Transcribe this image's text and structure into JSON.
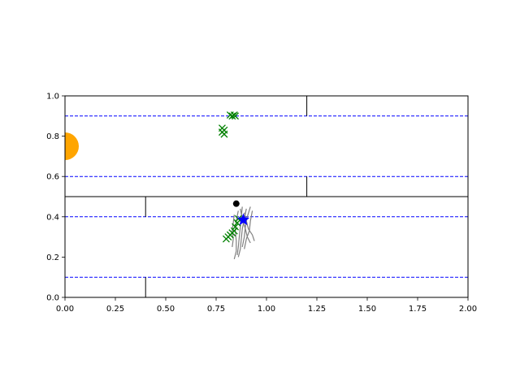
{
  "chart_data": {
    "type": "scatter",
    "xlim": [
      0,
      2
    ],
    "ylim": [
      0,
      1
    ],
    "xticks": [
      0,
      0.25,
      0.5,
      0.75,
      1.0,
      1.25,
      1.5,
      1.75,
      2.0
    ],
    "yticks": [
      0,
      0.2,
      0.4,
      0.6,
      0.8,
      1.0
    ],
    "xtick_labels": [
      "0.00",
      "0.25",
      "0.50",
      "0.75",
      "1.00",
      "1.25",
      "1.50",
      "1.75",
      "2.00"
    ],
    "ytick_labels": [
      "0.0",
      "0.2",
      "0.4",
      "0.6",
      "0.8",
      "1.0"
    ],
    "grid": false,
    "lane_lines": {
      "y": [
        0.1,
        0.4,
        0.6,
        0.9
      ],
      "color": "#0000ff",
      "style": "dashed"
    },
    "walls": {
      "color": "#000000",
      "segments": [
        [
          [
            0,
            0.5
          ],
          [
            2,
            0.5
          ]
        ],
        [
          [
            0.4,
            0.4
          ],
          [
            0.4,
            0.5
          ]
        ],
        [
          [
            0.4,
            0.0
          ],
          [
            0.4,
            0.1
          ]
        ],
        [
          [
            1.2,
            0.9
          ],
          [
            1.2,
            1.0
          ]
        ],
        [
          [
            1.2,
            0.5
          ],
          [
            1.2,
            0.6
          ]
        ]
      ]
    },
    "goal_marker": {
      "x": 0.0,
      "y": 0.75,
      "color": "#ffa500",
      "shape": "circle"
    },
    "black_point": {
      "x": 0.85,
      "y": 0.465,
      "color": "#000000"
    },
    "blue_marker": {
      "x": 0.885,
      "y": 0.385,
      "color": "#0000ff",
      "shape": "star"
    },
    "green_x_markers": {
      "color": "#008000",
      "points": [
        [
          0.82,
          0.905
        ],
        [
          0.83,
          0.9
        ],
        [
          0.84,
          0.905
        ],
        [
          0.845,
          0.9
        ],
        [
          0.78,
          0.84
        ],
        [
          0.79,
          0.83
        ],
        [
          0.78,
          0.82
        ],
        [
          0.79,
          0.81
        ],
        [
          0.8,
          0.29
        ],
        [
          0.81,
          0.3
        ],
        [
          0.82,
          0.31
        ],
        [
          0.83,
          0.32
        ],
        [
          0.84,
          0.33
        ],
        [
          0.845,
          0.35
        ],
        [
          0.855,
          0.37
        ],
        [
          0.86,
          0.39
        ]
      ]
    },
    "gray_trajectories": {
      "color": "#808080",
      "paths": [
        [
          [
            0.88,
            0.45
          ],
          [
            0.875,
            0.4
          ],
          [
            0.87,
            0.35
          ],
          [
            0.865,
            0.3
          ],
          [
            0.86,
            0.25
          ],
          [
            0.855,
            0.21
          ]
        ],
        [
          [
            0.9,
            0.44
          ],
          [
            0.89,
            0.39
          ],
          [
            0.88,
            0.34
          ],
          [
            0.875,
            0.29
          ],
          [
            0.87,
            0.24
          ],
          [
            0.86,
            0.2
          ]
        ],
        [
          [
            0.92,
            0.45
          ],
          [
            0.905,
            0.4
          ],
          [
            0.895,
            0.35
          ],
          [
            0.89,
            0.3
          ],
          [
            0.88,
            0.25
          ]
        ],
        [
          [
            0.86,
            0.43
          ],
          [
            0.85,
            0.38
          ],
          [
            0.845,
            0.33
          ],
          [
            0.85,
            0.28
          ],
          [
            0.85,
            0.23
          ],
          [
            0.84,
            0.19
          ]
        ],
        [
          [
            0.93,
            0.43
          ],
          [
            0.92,
            0.38
          ],
          [
            0.915,
            0.33
          ],
          [
            0.9,
            0.29
          ],
          [
            0.89,
            0.24
          ]
        ],
        [
          [
            0.84,
            0.41
          ],
          [
            0.835,
            0.37
          ],
          [
            0.83,
            0.33
          ],
          [
            0.835,
            0.29
          ],
          [
            0.83,
            0.25
          ]
        ],
        [
          [
            0.89,
            0.42
          ],
          [
            0.9,
            0.38
          ],
          [
            0.91,
            0.34
          ],
          [
            0.93,
            0.31
          ],
          [
            0.94,
            0.28
          ]
        ],
        [
          [
            0.87,
            0.44
          ],
          [
            0.88,
            0.39
          ],
          [
            0.895,
            0.34
          ],
          [
            0.905,
            0.3
          ],
          [
            0.92,
            0.27
          ]
        ]
      ]
    }
  }
}
